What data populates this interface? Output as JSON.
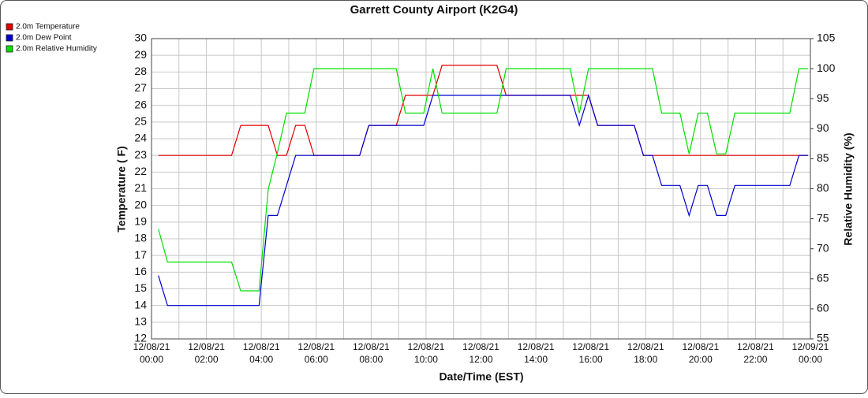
{
  "chart_data": {
    "type": "line",
    "title": "Garrett County Airport (K2G4)",
    "xlabel": "Date/Time (EST)",
    "ylabel": "Temperature ( F)",
    "y2label": "Relative Humidity (%)",
    "x": [
      "12/08/21 00:15",
      "12/08/21 00:35",
      "12/08/21 02:55",
      "12/08/21 03:15",
      "12/08/21 03:55",
      "12/08/21 04:15",
      "12/08/21 04:35",
      "12/08/21 04:55",
      "12/08/21 05:15",
      "12/08/21 05:35",
      "12/08/21 05:55",
      "12/08/21 07:35",
      "12/08/21 07:55",
      "12/08/21 08:55",
      "12/08/21 09:15",
      "12/08/21 09:55",
      "12/08/21 10:15",
      "12/08/21 10:35",
      "12/08/21 12:35",
      "12/08/21 12:55",
      "12/08/21 15:15",
      "12/08/21 15:35",
      "12/08/21 15:55",
      "12/08/21 16:15",
      "12/08/21 17:35",
      "12/08/21 17:55",
      "12/08/21 18:15",
      "12/08/21 18:35",
      "12/08/21 19:15",
      "12/08/21 19:35",
      "12/08/21 19:55",
      "12/08/21 20:15",
      "12/08/21 20:35",
      "12/08/21 20:55",
      "12/08/21 21:15",
      "12/08/21 23:15",
      "12/08/21 23:35",
      "12/08/21 23:55"
    ],
    "series": [
      {
        "name": "2.0m Temperature",
        "color": "#e00000",
        "values": [
          23,
          23,
          23,
          24.8,
          24.8,
          24.8,
          23,
          23,
          24.8,
          24.8,
          23,
          23,
          24.8,
          24.8,
          26.6,
          26.6,
          26.6,
          28.4,
          28.4,
          26.6,
          26.6,
          26.6,
          26.6,
          24.8,
          24.8,
          23,
          23,
          23,
          23,
          23,
          23,
          23,
          23,
          23,
          23,
          23,
          23,
          23
        ]
      },
      {
        "name": "2.0m Dew Point",
        "color": "#0000d0",
        "values": [
          15.8,
          14,
          14,
          14,
          14,
          19.4,
          19.4,
          21.2,
          23,
          23,
          23,
          23,
          24.8,
          24.8,
          24.8,
          24.8,
          26.6,
          26.6,
          26.6,
          26.6,
          26.6,
          24.8,
          26.6,
          24.8,
          24.8,
          23,
          23,
          21.2,
          21.2,
          19.4,
          21.2,
          21.2,
          19.4,
          19.4,
          21.2,
          21.2,
          23,
          23
        ]
      },
      {
        "name": "2.0m Relative Humidity",
        "color": "#00e000",
        "axis": "y2",
        "values": [
          73.3,
          67.8,
          67.8,
          63,
          63,
          79.9,
          86,
          92.6,
          92.6,
          92.6,
          100,
          100,
          100,
          100,
          92.6,
          92.6,
          100,
          92.6,
          92.6,
          100,
          100,
          92.6,
          100,
          100,
          100,
          100,
          100,
          92.6,
          92.6,
          85.8,
          92.6,
          92.6,
          85.8,
          85.8,
          92.6,
          92.6,
          100,
          100
        ]
      }
    ],
    "xlim": [
      "12/08/21 00:00",
      "12/09/21 00:00"
    ],
    "xticks": [
      "12/08/21 00:00",
      "12/08/21 02:00",
      "12/08/21 04:00",
      "12/08/21 06:00",
      "12/08/21 08:00",
      "12/08/21 10:00",
      "12/08/21 12:00",
      "12/08/21 14:00",
      "12/08/21 16:00",
      "12/08/21 18:00",
      "12/08/21 20:00",
      "12/08/21 22:00",
      "12/09/21 00:00"
    ],
    "ylim": [
      12,
      30
    ],
    "yticks": [
      12,
      13,
      14,
      15,
      16,
      17,
      18,
      19,
      20,
      21,
      22,
      23,
      24,
      25,
      26,
      27,
      28,
      29,
      30
    ],
    "y2lim": [
      55,
      105
    ],
    "y2ticks": [
      55,
      60,
      65,
      70,
      75,
      80,
      85,
      90,
      95,
      100,
      105
    ],
    "grid": true,
    "legend": "top-left"
  }
}
